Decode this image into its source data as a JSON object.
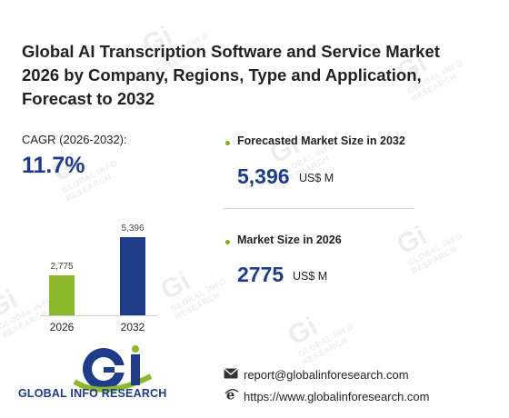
{
  "title": "Global AI Transcription Software and Service Market 2026 by Company, Regions, Type and Application, Forecast to 2032",
  "cagr": {
    "label": "CAGR (2026-2032):",
    "value": "11.7%"
  },
  "colors": {
    "accent_blue": "#1f3c88",
    "accent_green": "#8cb82b",
    "bullet_green": "#7ab317"
  },
  "chart_data": {
    "type": "bar",
    "categories": [
      "2026",
      "2032"
    ],
    "values": [
      2775,
      5396
    ],
    "value_labels": [
      "2,775",
      "5,396"
    ],
    "colors": [
      "#8cb82b",
      "#1f3c88"
    ],
    "title": "",
    "xlabel": "",
    "ylabel": ""
  },
  "kpis": [
    {
      "label": "Forecasted Market Size in 2032",
      "value": "5,396",
      "unit": "US$ M"
    },
    {
      "label": "Market Size in 2026",
      "value": "2775",
      "unit": "US$ M"
    }
  ],
  "logo": {
    "text": "GLOBAL INFO RESEARCH"
  },
  "watermark": {
    "text": "GLOBAL INFO RESEARCH"
  },
  "contact": {
    "email": "report@globalinforesearch.com",
    "website": "https://www.globalinforesearch.com",
    "email_icon": "envelope-icon",
    "website_icon": "ie-browser-icon"
  }
}
